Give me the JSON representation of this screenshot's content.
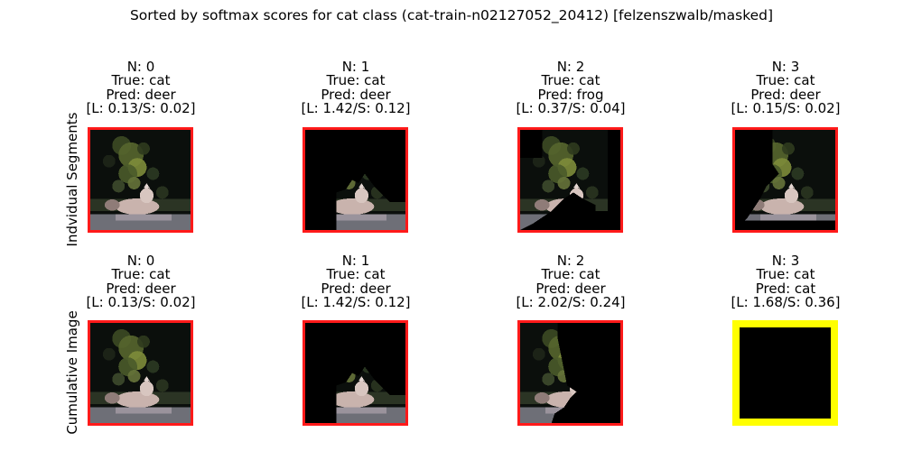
{
  "title": "Sorted by softmax scores for cat class (cat-train-n02127052_20412) [felzenszwalb/masked]",
  "rows": [
    {
      "label": "Indvidual Segments",
      "panels": [
        {
          "n": "N: 0",
          "true": "True: cat",
          "pred": "Pred: deer",
          "score": "[L: 0.13/S: 0.02]",
          "mask": "none",
          "highlight": false
        },
        {
          "n": "N: 1",
          "true": "True: cat",
          "pred": "Pred: deer",
          "score": "[L: 1.42/S: 0.12]",
          "mask": "seg1",
          "highlight": false
        },
        {
          "n": "N: 2",
          "true": "True: cat",
          "pred": "Pred: frog",
          "score": "[L: 0.37/S: 0.04]",
          "mask": "seg2",
          "highlight": false
        },
        {
          "n": "N: 3",
          "true": "True: cat",
          "pred": "Pred: deer",
          "score": "[L: 0.15/S: 0.02]",
          "mask": "seg3",
          "highlight": false
        }
      ]
    },
    {
      "label": "Cumulative Image",
      "panels": [
        {
          "n": "N: 0",
          "true": "True: cat",
          "pred": "Pred: deer",
          "score": "[L: 0.13/S: 0.02]",
          "mask": "none",
          "highlight": false
        },
        {
          "n": "N: 1",
          "true": "True: cat",
          "pred": "Pred: deer",
          "score": "[L: 1.42/S: 0.12]",
          "mask": "seg1",
          "highlight": false
        },
        {
          "n": "N: 2",
          "true": "True: cat",
          "pred": "Pred: deer",
          "score": "[L: 2.02/S: 0.24]",
          "mask": "cum2",
          "highlight": false
        },
        {
          "n": "N: 3",
          "true": "True: cat",
          "pred": "Pred: cat",
          "score": "[L: 1.68/S: 0.36]",
          "mask": "all",
          "highlight": true
        }
      ]
    }
  ],
  "colors": {
    "frame": "#ff1a1a",
    "highlight_frame": "#ffff00",
    "mask": "#000000"
  }
}
